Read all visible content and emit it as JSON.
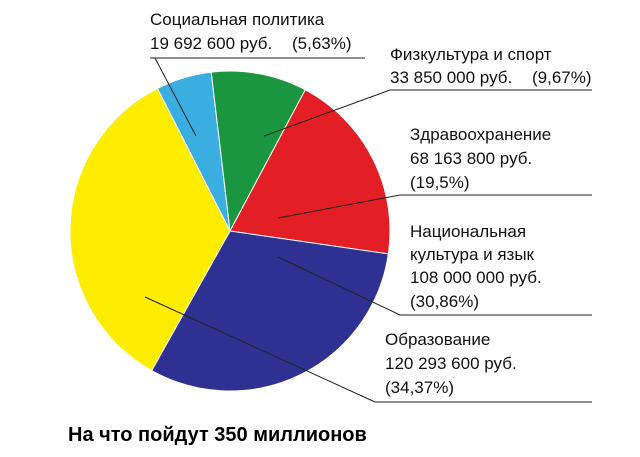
{
  "chart_data": {
    "type": "pie",
    "title": "На что пойдут 350 миллионов",
    "categories": [
      "Социальная политика",
      "Физкультура и спорт",
      "Здравоохранение",
      "Национальная культура и язык",
      "Образование"
    ],
    "values": [
      5.63,
      9.67,
      19.5,
      30.86,
      34.37
    ],
    "value_labels": [
      "(5,63%)",
      "(9,67%)",
      "(19,5%)",
      "(30,86%)",
      "(34,37%)"
    ],
    "amounts": [
      19692600,
      33850000,
      68163800,
      108000000,
      120293600
    ],
    "amount_labels": [
      "19 692 600 руб.",
      "33 850 000 руб.",
      "68 163 800 руб.",
      "108 000 000 руб.",
      "120 293 600 руб."
    ],
    "colors": [
      "#3aaee0",
      "#1a9641",
      "#e31e24",
      "#2e3192",
      "#ffed00"
    ]
  }
}
